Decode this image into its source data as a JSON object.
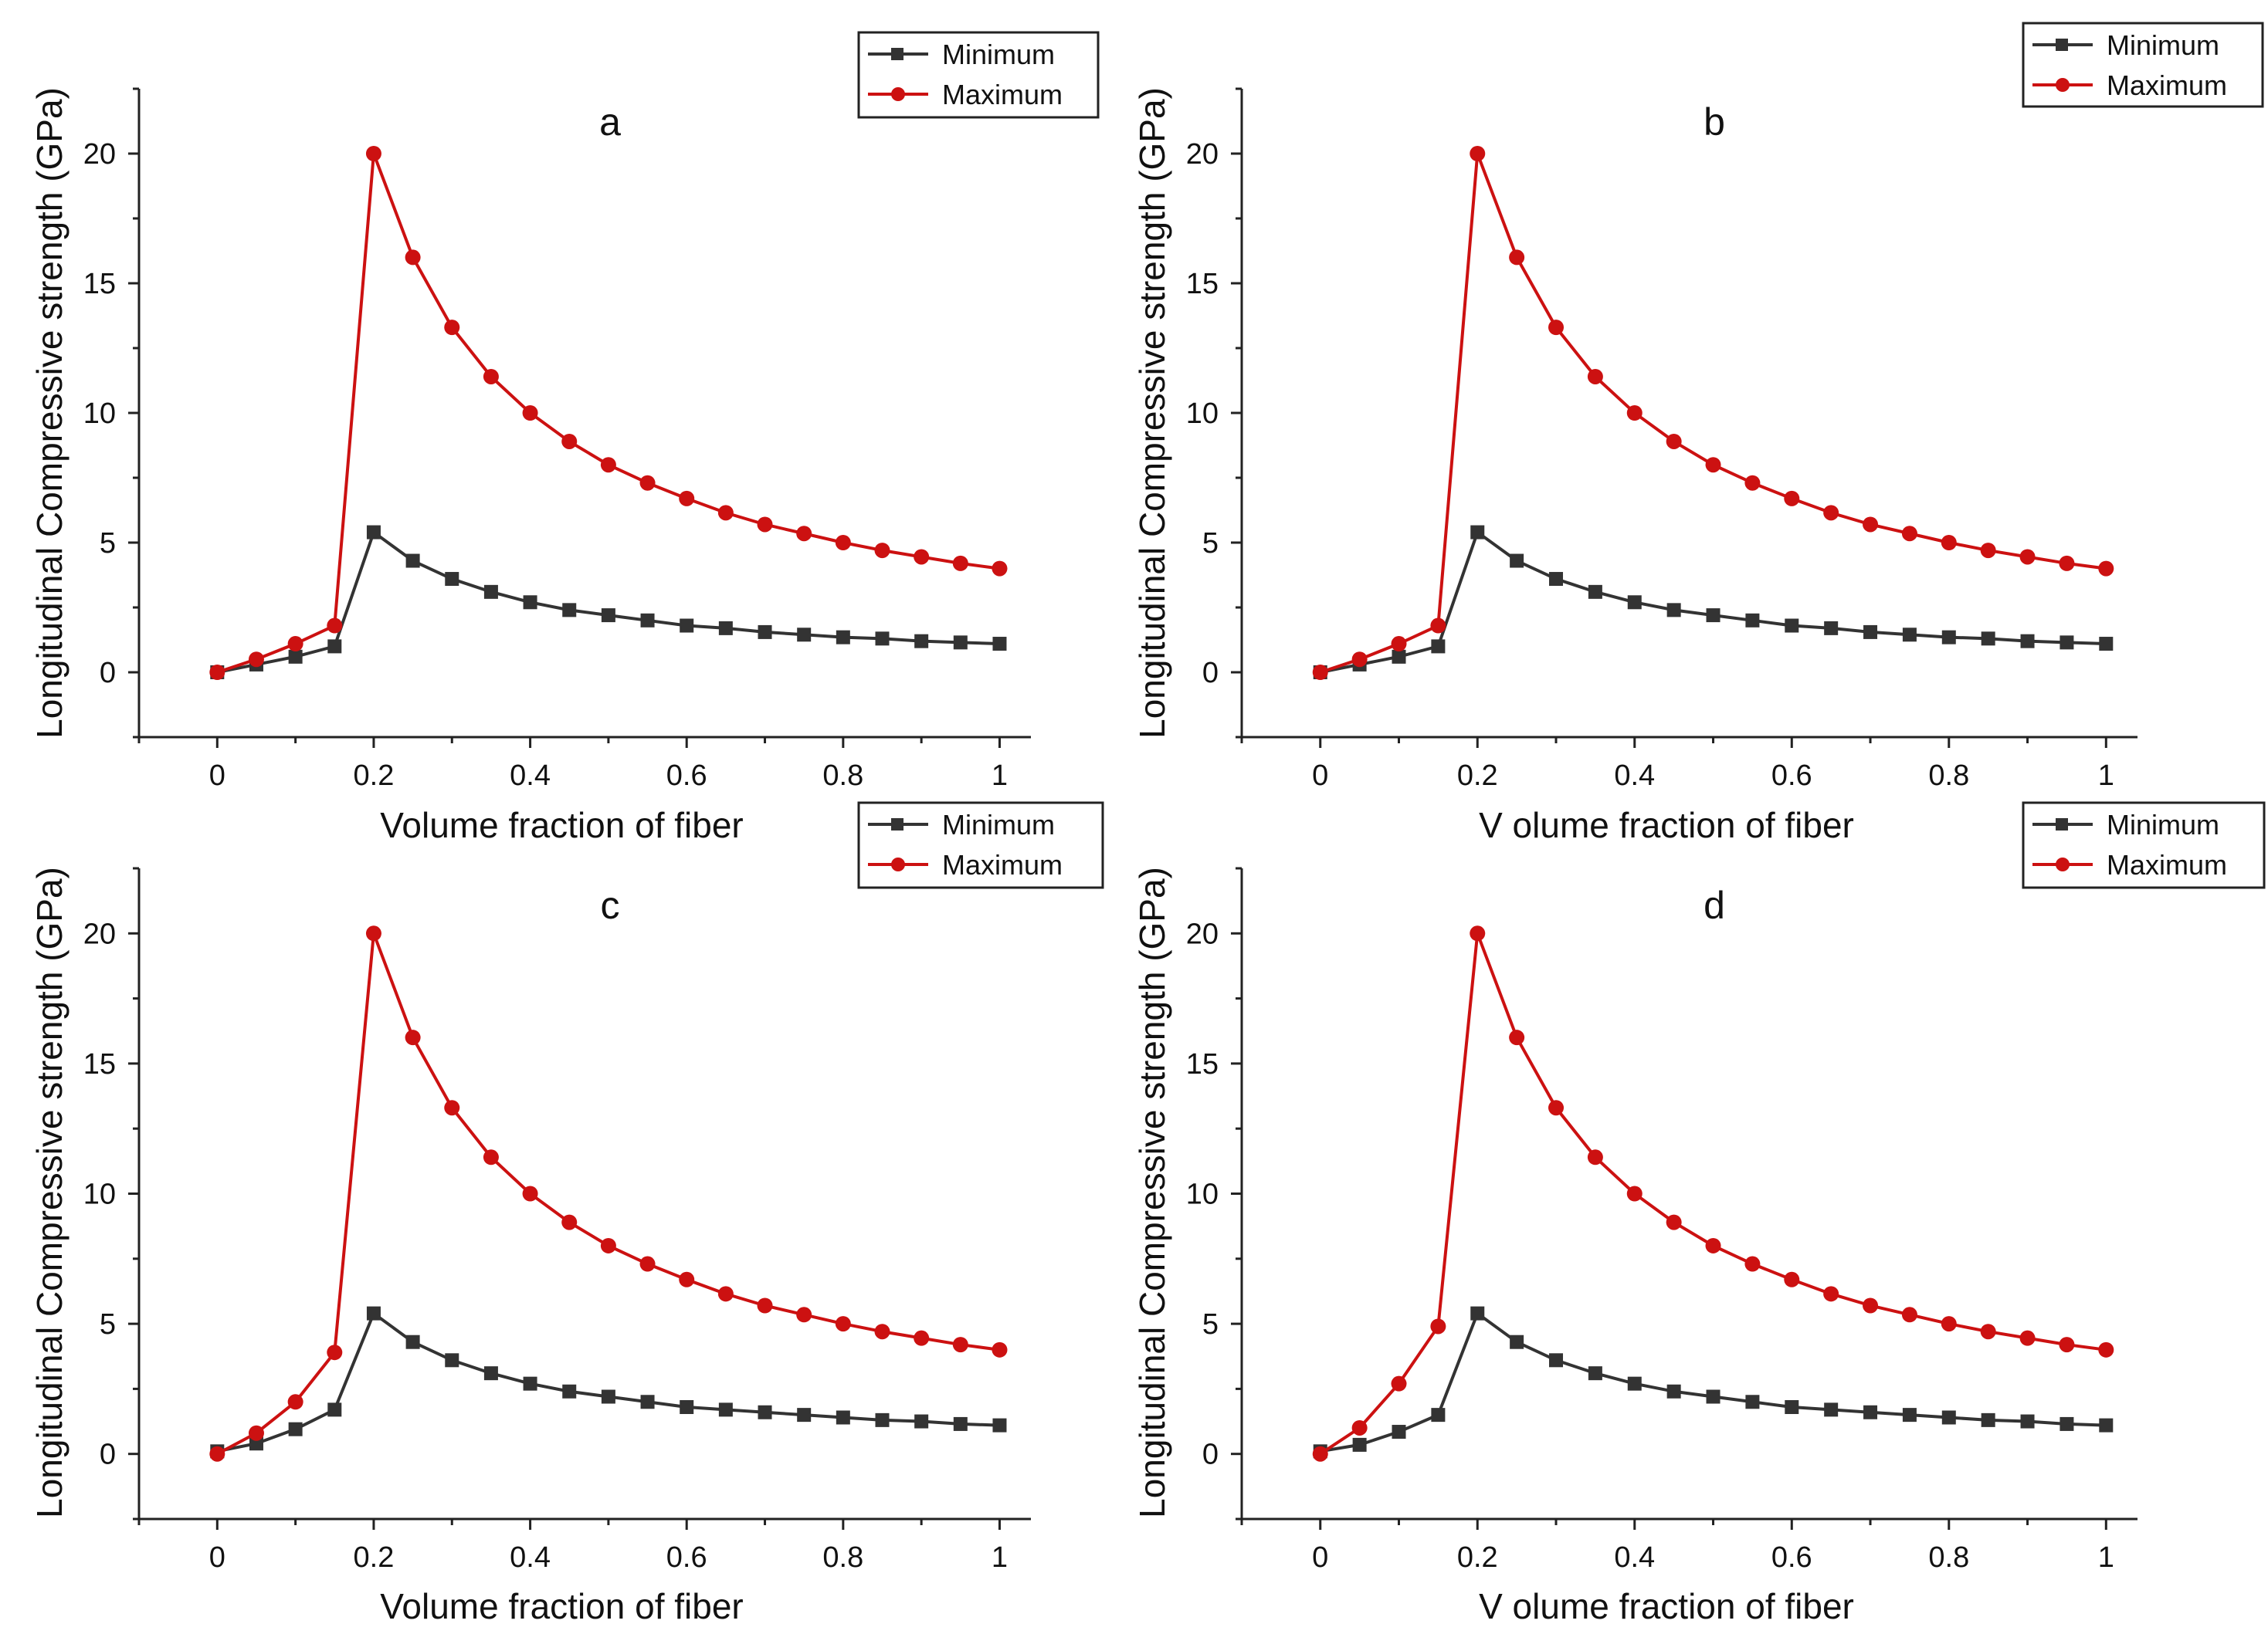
{
  "chart_data": [
    {
      "type": "line",
      "panel_label": "a",
      "xlabel": "Volume fraction of fiber",
      "ylabel": "Longitudinal Compressive strength (GPa)",
      "xlim": [
        -0.1,
        1.04
      ],
      "ylim": [
        -2.5,
        22.5
      ],
      "xticks": [
        0,
        0.2,
        0.4,
        0.6,
        0.8,
        1
      ],
      "xtick_labels": [
        "0",
        "0.2",
        "0.4",
        "0.6",
        "0.8",
        "1"
      ],
      "yticks": [
        0,
        5,
        10,
        15,
        20
      ],
      "ytick_labels": [
        "0",
        "5",
        "10",
        "15",
        "20"
      ],
      "legend_position": "top-right",
      "x": [
        0,
        0.05,
        0.1,
        0.15,
        0.2,
        0.25,
        0.3,
        0.35,
        0.4,
        0.45,
        0.5,
        0.55,
        0.6,
        0.65,
        0.7,
        0.75,
        0.8,
        0.85,
        0.9,
        0.95,
        1.0
      ],
      "series": [
        {
          "name": "Minimum",
          "color": "#333333",
          "marker": "square",
          "values": [
            0,
            0.3,
            0.6,
            1.0,
            5.4,
            4.3,
            3.6,
            3.1,
            2.7,
            2.4,
            2.2,
            2.0,
            1.8,
            1.7,
            1.55,
            1.45,
            1.35,
            1.3,
            1.2,
            1.15,
            1.1
          ]
        },
        {
          "name": "Maximum",
          "color": "#cc1111",
          "marker": "circle",
          "values": [
            0,
            0.5,
            1.1,
            1.8,
            20.0,
            16.0,
            13.3,
            11.4,
            10.0,
            8.9,
            8.0,
            7.3,
            6.7,
            6.15,
            5.7,
            5.35,
            5.0,
            4.7,
            4.45,
            4.2,
            4.0
          ]
        }
      ]
    },
    {
      "type": "line",
      "panel_label": "b",
      "xlabel": "V olume fraction of fiber",
      "ylabel": "Longitudinal Compressive strength (GPa)",
      "xlim": [
        -0.1,
        1.04
      ],
      "ylim": [
        -2.5,
        22.5
      ],
      "xticks": [
        0,
        0.2,
        0.4,
        0.6,
        0.8,
        1
      ],
      "xtick_labels": [
        "0",
        "0.2",
        "0.4",
        "0.6",
        "0.8",
        "1"
      ],
      "yticks": [
        0,
        5,
        10,
        15,
        20
      ],
      "ytick_labels": [
        "0",
        "5",
        "10",
        "15",
        "20"
      ],
      "legend_position": "top-right",
      "x": [
        0,
        0.05,
        0.1,
        0.15,
        0.2,
        0.25,
        0.3,
        0.35,
        0.4,
        0.45,
        0.5,
        0.55,
        0.6,
        0.65,
        0.7,
        0.75,
        0.8,
        0.85,
        0.9,
        0.95,
        1.0
      ],
      "series": [
        {
          "name": "Minimum",
          "color": "#333333",
          "marker": "square",
          "values": [
            0,
            0.3,
            0.6,
            1.0,
            5.4,
            4.3,
            3.6,
            3.1,
            2.7,
            2.4,
            2.2,
            2.0,
            1.8,
            1.7,
            1.55,
            1.45,
            1.35,
            1.3,
            1.2,
            1.15,
            1.1
          ]
        },
        {
          "name": "Maximum",
          "color": "#cc1111",
          "marker": "circle",
          "values": [
            0,
            0.5,
            1.1,
            1.8,
            20.0,
            16.0,
            13.3,
            11.4,
            10.0,
            8.9,
            8.0,
            7.3,
            6.7,
            6.15,
            5.7,
            5.35,
            5.0,
            4.7,
            4.45,
            4.2,
            4.0
          ]
        }
      ]
    },
    {
      "type": "line",
      "panel_label": "c",
      "xlabel": "Volume fraction of fiber",
      "ylabel": "Longitudinal Compressive strength (GPa)",
      "xlim": [
        -0.1,
        1.04
      ],
      "ylim": [
        -2.5,
        22.5
      ],
      "xticks": [
        0,
        0.2,
        0.4,
        0.6,
        0.8,
        1
      ],
      "xtick_labels": [
        "0",
        "0.2",
        "0.4",
        "0.6",
        "0.8",
        "1"
      ],
      "yticks": [
        0,
        5,
        10,
        15,
        20
      ],
      "ytick_labels": [
        "0",
        "5",
        "10",
        "15",
        "20"
      ],
      "legend_position": "top-right",
      "x": [
        0,
        0.05,
        0.1,
        0.15,
        0.2,
        0.25,
        0.3,
        0.35,
        0.4,
        0.45,
        0.5,
        0.55,
        0.6,
        0.65,
        0.7,
        0.75,
        0.8,
        0.85,
        0.9,
        0.95,
        1.0
      ],
      "series": [
        {
          "name": "Minimum",
          "color": "#333333",
          "marker": "square",
          "values": [
            0.1,
            0.4,
            0.95,
            1.7,
            5.4,
            4.3,
            3.6,
            3.1,
            2.7,
            2.4,
            2.2,
            2.0,
            1.8,
            1.7,
            1.6,
            1.5,
            1.4,
            1.3,
            1.25,
            1.15,
            1.1
          ]
        },
        {
          "name": "Maximum",
          "color": "#cc1111",
          "marker": "circle",
          "values": [
            0,
            0.8,
            2.0,
            3.9,
            20.0,
            16.0,
            13.3,
            11.4,
            10.0,
            8.9,
            8.0,
            7.3,
            6.7,
            6.15,
            5.7,
            5.35,
            5.0,
            4.7,
            4.45,
            4.2,
            4.0
          ]
        }
      ]
    },
    {
      "type": "line",
      "panel_label": "d",
      "xlabel": "V olume fraction of fiber",
      "ylabel": "Longitudinal Compressive strength (GPa)",
      "xlim": [
        -0.1,
        1.04
      ],
      "ylim": [
        -2.5,
        22.5
      ],
      "xticks": [
        0,
        0.2,
        0.4,
        0.6,
        0.8,
        1
      ],
      "xtick_labels": [
        "0",
        "0.2",
        "0.4",
        "0.6",
        "0.8",
        "1"
      ],
      "yticks": [
        0,
        5,
        10,
        15,
        20
      ],
      "ytick_labels": [
        "0",
        "5",
        "10",
        "15",
        "20"
      ],
      "legend_position": "top-right",
      "x": [
        0,
        0.05,
        0.1,
        0.15,
        0.2,
        0.25,
        0.3,
        0.35,
        0.4,
        0.45,
        0.5,
        0.55,
        0.6,
        0.65,
        0.7,
        0.75,
        0.8,
        0.85,
        0.9,
        0.95,
        1.0
      ],
      "series": [
        {
          "name": "Minimum",
          "color": "#333333",
          "marker": "square",
          "values": [
            0.1,
            0.35,
            0.85,
            1.5,
            5.4,
            4.3,
            3.6,
            3.1,
            2.7,
            2.4,
            2.2,
            2.0,
            1.8,
            1.7,
            1.6,
            1.5,
            1.4,
            1.3,
            1.25,
            1.15,
            1.1
          ]
        },
        {
          "name": "Maximum",
          "color": "#cc1111",
          "marker": "circle",
          "values": [
            0,
            1.0,
            2.7,
            4.9,
            20.0,
            16.0,
            13.3,
            11.4,
            10.0,
            8.9,
            8.0,
            7.3,
            6.7,
            6.15,
            5.7,
            5.35,
            5.0,
            4.7,
            4.45,
            4.2,
            4.0
          ]
        }
      ]
    }
  ]
}
